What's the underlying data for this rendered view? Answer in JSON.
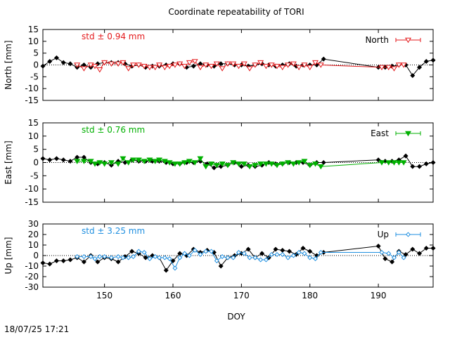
{
  "page_title": "Coordinate repeatability of TORI",
  "timestamp": "18/07/25 17:21",
  "colors": {
    "black": "#000000",
    "north": "#e41a1c",
    "east": "#00b000",
    "up": "#1f8fe0"
  },
  "chart_data": [
    {
      "type": "line",
      "title": "Coordinate repeatability of TORI",
      "panel": "north",
      "ylabel": "North [mm]",
      "xlabel": "",
      "xlim": [
        141,
        198
      ],
      "ylim": [
        -15,
        15
      ],
      "yticks": [
        -15,
        -10,
        -5,
        0,
        5,
        10,
        15
      ],
      "xticks": [
        150,
        160,
        170,
        180,
        190
      ],
      "show_xtick_labels": false,
      "annotation": "std ± 0.94 mm",
      "annotation_color": "#e41a1c",
      "legend": {
        "label": "North",
        "position": "top-right",
        "color": "#e41a1c",
        "marker": "triangle-down-open"
      },
      "series": [
        {
          "name": "",
          "style": "black-diamond",
          "x": [
            141,
            142,
            143,
            144,
            145,
            146,
            147,
            148,
            149,
            150,
            151,
            152,
            153,
            154,
            155,
            156,
            157,
            158,
            159,
            160,
            161,
            162,
            163,
            164,
            165,
            166,
            167,
            168,
            169,
            170,
            171,
            172,
            173,
            174,
            175,
            176,
            177,
            178,
            179,
            180,
            181,
            182,
            190,
            191,
            192,
            193,
            194,
            195,
            196,
            197,
            198
          ],
          "y": [
            -0.5,
            1.5,
            3,
            1,
            0.5,
            -1,
            0,
            -1,
            0.5,
            1,
            1,
            1,
            0.5,
            -0.5,
            0,
            -1,
            -0.5,
            -0.5,
            0,
            0.5,
            0.5,
            -1,
            -0.5,
            0.5,
            0,
            -0.5,
            0.5,
            0.5,
            0,
            0,
            -0.5,
            0,
            0.5,
            0,
            -0.5,
            0,
            0.5,
            -0.5,
            0,
            0,
            0,
            2.5,
            -1,
            -1,
            -0.5,
            0,
            0,
            -4.5,
            -1,
            1.5,
            2
          ]
        },
        {
          "name": "North",
          "style": "red-triangle",
          "x": [
            146,
            147,
            148,
            148.6,
            149.3,
            150,
            151,
            152,
            152.7,
            153.5,
            154.2,
            155,
            155.8,
            156.6,
            157.4,
            158,
            158.8,
            159.5,
            160.3,
            161,
            161.7,
            162.4,
            163.2,
            164,
            164.8,
            165.6,
            166.4,
            167.2,
            168,
            168.8,
            169.6,
            170.4,
            171.2,
            172,
            172.8,
            173.6,
            174.4,
            175.2,
            176,
            176.8,
            177.6,
            178.4,
            179.2,
            180,
            180.8,
            181.6,
            190.5,
            191.5,
            192.3,
            193,
            193.7
          ],
          "y": [
            0,
            -1.5,
            0,
            -0.5,
            -2,
            1,
            0.5,
            0.5,
            1,
            -1.5,
            0,
            0,
            -0.5,
            -1,
            -1,
            0,
            -1,
            -0.5,
            0,
            0.5,
            -0.5,
            1,
            1.5,
            -1,
            0,
            -0.5,
            0.5,
            -1.5,
            0.5,
            0.5,
            -0.5,
            0.5,
            -1.5,
            0,
            1,
            -0.5,
            0,
            -0.5,
            -1,
            0,
            0.5,
            -1,
            0,
            -1,
            1,
            0,
            -1,
            -1,
            -1.5,
            0,
            0
          ]
        }
      ]
    },
    {
      "type": "line",
      "panel": "east",
      "ylabel": "East [mm]",
      "xlabel": "",
      "xlim": [
        141,
        198
      ],
      "ylim": [
        -15,
        15
      ],
      "yticks": [
        -15,
        -10,
        -5,
        0,
        5,
        10,
        15
      ],
      "xticks": [
        150,
        160,
        170,
        180,
        190
      ],
      "show_xtick_labels": false,
      "annotation": "std ± 0.76 mm",
      "annotation_color": "#00b000",
      "legend": {
        "label": "East",
        "position": "top-right",
        "color": "#00b000",
        "marker": "triangle-down-filled"
      },
      "series": [
        {
          "name": "",
          "style": "black-diamond",
          "x": [
            141,
            142,
            143,
            144,
            145,
            146,
            147,
            148,
            149,
            150,
            151,
            152,
            153,
            154,
            155,
            156,
            157,
            158,
            159,
            160,
            161,
            162,
            163,
            164,
            165,
            166,
            167,
            168,
            169,
            170,
            171,
            172,
            173,
            174,
            175,
            176,
            177,
            178,
            179,
            180,
            181,
            182,
            190,
            191,
            192,
            193,
            194,
            195,
            196,
            197,
            198
          ],
          "y": [
            1.5,
            1,
            1.5,
            1,
            0.5,
            2,
            2,
            0,
            -0.5,
            0,
            -1,
            0.5,
            0,
            1,
            0.5,
            0.5,
            0.5,
            0.5,
            0,
            -0.5,
            -0.5,
            0,
            0,
            0.5,
            -0.5,
            -2,
            -1.5,
            -1,
            0,
            -1.5,
            -1,
            -1.5,
            -1,
            0,
            -0.5,
            -0.5,
            0,
            0,
            0,
            -1,
            0,
            0,
            1,
            0.5,
            0.5,
            1,
            2.5,
            -1.5,
            -1.5,
            -0.5,
            0
          ]
        },
        {
          "name": "East",
          "style": "green-triangle",
          "x": [
            146,
            147,
            148,
            148.6,
            149.3,
            150,
            151,
            152,
            152.7,
            153.5,
            154.2,
            155,
            155.8,
            156.6,
            157.4,
            158,
            158.8,
            159.5,
            160.3,
            161,
            161.7,
            162.4,
            163.2,
            164,
            164.8,
            165.6,
            166.4,
            167.2,
            168,
            168.8,
            169.6,
            170.4,
            171.2,
            172,
            172.8,
            173.6,
            174.4,
            175.2,
            176,
            176.8,
            177.6,
            178.4,
            179.2,
            180,
            180.8,
            181.6,
            190.5,
            191.5,
            192.3,
            193,
            193.7
          ],
          "y": [
            0.5,
            0.5,
            0.5,
            -0.5,
            0,
            -0.5,
            0,
            -0.5,
            1.5,
            0,
            1,
            1,
            0.5,
            1,
            0.5,
            1,
            0.5,
            0,
            -0.5,
            -0.5,
            0,
            0.5,
            0,
            1.5,
            -1.5,
            -0.5,
            -1,
            -0.5,
            -1,
            0,
            -0.5,
            -0.5,
            -1.5,
            -1,
            -0.5,
            -0.5,
            -0.5,
            -1,
            -0.5,
            0,
            -0.5,
            0,
            0.5,
            -1,
            -0.5,
            -1.5,
            0,
            0,
            0,
            0,
            0
          ]
        }
      ]
    },
    {
      "type": "line",
      "panel": "up",
      "ylabel": "Up [mm]",
      "xlabel": "DOY",
      "xlim": [
        141,
        198
      ],
      "ylim": [
        -30,
        30
      ],
      "yticks": [
        -30,
        -20,
        -10,
        0,
        10,
        20,
        30
      ],
      "xticks": [
        150,
        160,
        170,
        180,
        190
      ],
      "show_xtick_labels": true,
      "annotation": "std ± 3.25 mm",
      "annotation_color": "#1f8fe0",
      "legend": {
        "label": "Up",
        "position": "top-right",
        "color": "#1f8fe0",
        "marker": "diamond-open"
      },
      "series": [
        {
          "name": "",
          "style": "black-diamond",
          "x": [
            141,
            142,
            143,
            144,
            145,
            146,
            147,
            148,
            149,
            150,
            151,
            152,
            153,
            154,
            155,
            156,
            157,
            158,
            159,
            160,
            161,
            162,
            163,
            164,
            165,
            166,
            167,
            168,
            169,
            170,
            171,
            172,
            173,
            174,
            175,
            176,
            177,
            178,
            179,
            180,
            181,
            182,
            190,
            191,
            192,
            193,
            194,
            195,
            196,
            197,
            198
          ],
          "y": [
            -7,
            -8,
            -5,
            -5,
            -4,
            -2,
            -6,
            0,
            -6,
            -2,
            -3,
            -6,
            -1,
            4,
            2,
            -2,
            0,
            -2,
            -14,
            -5,
            2,
            0,
            6,
            3,
            5,
            3,
            -10,
            -2,
            0,
            2,
            6,
            -2,
            2,
            -2,
            6,
            5,
            4,
            1,
            7,
            4,
            0,
            3,
            9,
            -3,
            -6,
            4,
            1,
            6,
            2,
            7,
            7
          ]
        },
        {
          "name": "Up",
          "style": "blue-diamond",
          "x": [
            146,
            147,
            148,
            148.6,
            149.3,
            150,
            151,
            152,
            152.7,
            153.5,
            154.2,
            155,
            155.8,
            156.6,
            157.4,
            158,
            158.8,
            159.5,
            160.3,
            161,
            161.7,
            162.4,
            163.2,
            164,
            164.8,
            165.6,
            166.4,
            167.2,
            168,
            168.8,
            169.6,
            170.4,
            171.2,
            172,
            172.8,
            173.6,
            174.4,
            175.2,
            176,
            176.8,
            177.6,
            178.4,
            179.2,
            180,
            180.8,
            181.6,
            190.5,
            191.5,
            192.3,
            193,
            193.7
          ],
          "y": [
            -1,
            -1,
            -1,
            -3,
            -1,
            -1,
            -2,
            -1,
            -2,
            -2,
            -1,
            4,
            3,
            -3,
            -1,
            -2,
            -2,
            -3,
            -12,
            -2,
            2,
            0,
            5,
            1,
            4,
            4,
            -5,
            -1,
            -2,
            -2,
            3,
            2,
            -2,
            -2,
            -4,
            -4,
            1,
            1,
            1,
            -2,
            0,
            3,
            2,
            -2,
            -3,
            3,
            3,
            2,
            -2,
            3,
            -2
          ]
        }
      ]
    }
  ]
}
